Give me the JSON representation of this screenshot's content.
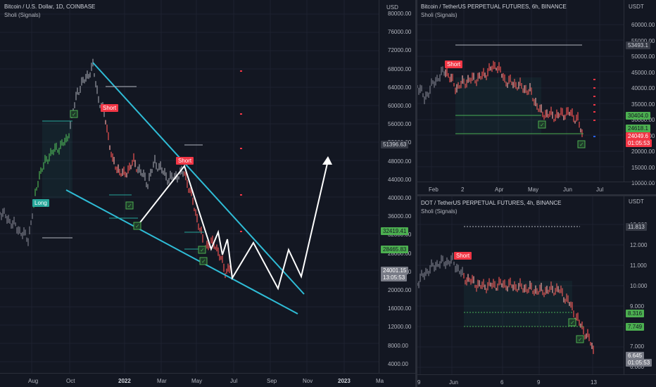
{
  "main_chart": {
    "title": "Bitcoin / U.S. Dollar, 1D, COINBASE",
    "indicator": "Sholi (Signals)",
    "price_ticks": [
      "80000.00",
      "76000.00",
      "72000.00",
      "68000.00",
      "64000.00",
      "60000.00",
      "56000.00",
      "52000.00",
      "48000.00",
      "44000.00",
      "40000.00",
      "36000.00",
      "32000.00",
      "28000.00",
      "24000.00",
      "20000.00",
      "16000.00",
      "12000.00",
      "8000.00",
      "4000.00"
    ],
    "price_tags": {
      "upper": "51396.63",
      "green_1": "32419.41",
      "green_2": "28465.83",
      "last_price": "24001.15",
      "countdown": "13:05:53"
    },
    "time_ticks": [
      "Aug",
      "Oct",
      "2022",
      "Mar",
      "May",
      "Jul",
      "Sep",
      "Nov",
      "2023",
      "Ma"
    ],
    "signals": {
      "long": "Long",
      "short_1": "Short",
      "short_2": "Short"
    },
    "currency_label": "USD"
  },
  "chart_top_right": {
    "title": "Bitcoin / TetherUS PERPETUAL FUTURES, 6h, BINANCE",
    "indicator": "Sholi (Signals)",
    "currency_label": "USDT",
    "price_ticks": [
      "60000.00",
      "55000.00",
      "50000.00",
      "45000.00",
      "40000.00",
      "35000.00",
      "30000.00",
      "25000.00",
      "20000.00",
      "15000.00",
      "10000.00"
    ],
    "price_tags": {
      "upper": "53493.1",
      "green_1": "30404.0",
      "green_2": "24618.1",
      "last_price": "24049.6",
      "countdown": "01:05:53"
    },
    "time_ticks": [
      "Feb",
      "2",
      "Apr",
      "May",
      "Jun",
      "Jul"
    ],
    "signals": {
      "short": "Short"
    }
  },
  "chart_bottom_right": {
    "title": "DOT / TetherUS PERPETUAL FUTURES, 4h, BINANCE",
    "indicator": "Sholi (Signals)",
    "currency_label": "USDT",
    "price_ticks": [
      "13.000",
      "12.000",
      "11.000",
      "10.000",
      "9.000",
      "8.000",
      "7.000",
      "6.000"
    ],
    "price_tags": {
      "upper": "11.813",
      "green_1": "8.316",
      "green_2": "7.749",
      "last_price": "6.645",
      "countdown": "01:05:53"
    },
    "time_ticks": [
      "9",
      "Jun",
      "6",
      "9",
      "13"
    ],
    "signals": {
      "short": "Short"
    }
  },
  "colors": {
    "background": "#131722",
    "grid": "#1e2230",
    "bull": "#26a69a",
    "bear": "#ef5350",
    "green_tag": "#4caf50",
    "red_tag": "#f23645",
    "gray_tag": "#787b86",
    "wedge": "#2fbcd6",
    "projection": "#ffffff"
  }
}
